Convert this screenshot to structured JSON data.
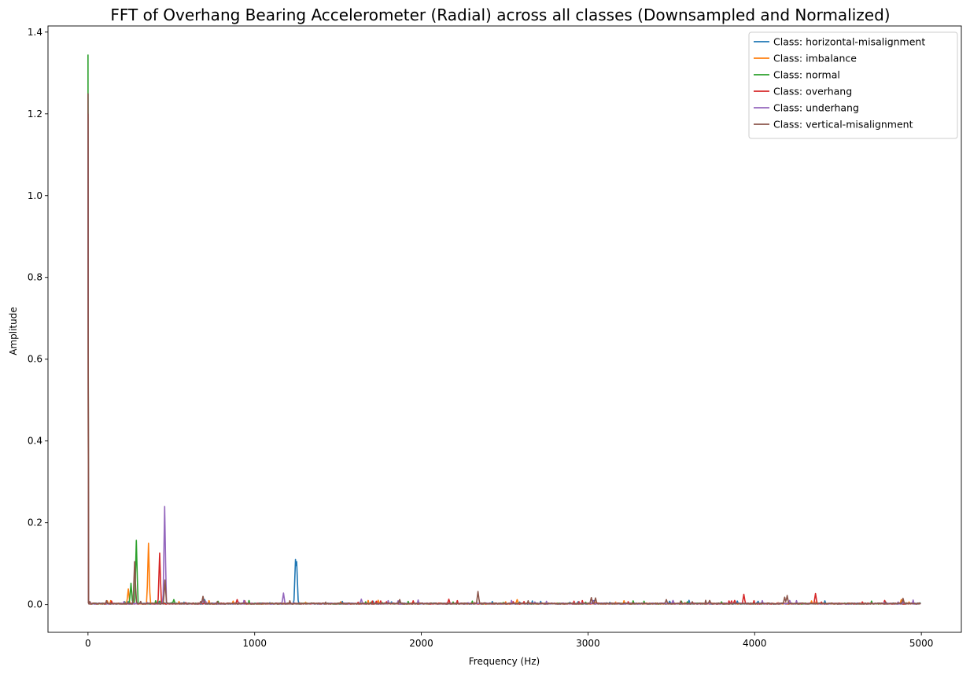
{
  "chart_data": {
    "type": "line",
    "title": "FFT of Overhang Bearing Accelerometer (Radial) across all classes (Downsampled and Normalized)",
    "xlabel": "Frequency (Hz)",
    "ylabel": "Amplitude",
    "xlim": [
      -240,
      5240
    ],
    "ylim": [
      -0.068,
      1.415
    ],
    "xticks": [
      0,
      1000,
      2000,
      3000,
      4000,
      5000
    ],
    "xtick_labels": [
      "0",
      "1000",
      "2000",
      "3000",
      "4000",
      "5000"
    ],
    "yticks": [
      0.0,
      0.2,
      0.4,
      0.6,
      0.8,
      1.0,
      1.2,
      1.4
    ],
    "ytick_labels": [
      "0.0",
      "0.2",
      "0.4",
      "0.6",
      "0.8",
      "1.0",
      "1.2",
      "1.4"
    ],
    "grid": false,
    "legend_position": "top-right",
    "x_max": 5000,
    "baseline": 0.002,
    "series": [
      {
        "name": "Class: horizontal-misalignment",
        "color": "#1f77b4",
        "dc": 1.25,
        "peaks": [
          [
            1245,
            0.11
          ],
          [
            1252,
            0.105
          ],
          [
            700,
            0.012
          ],
          [
            1870,
            0.01
          ],
          [
            3490,
            0.008
          ],
          [
            2590,
            0.006
          ]
        ]
      },
      {
        "name": "Class: imbalance",
        "color": "#ff7f0e",
        "dc": 1.2,
        "peaks": [
          [
            242,
            0.038
          ],
          [
            363,
            0.15
          ],
          [
            2575,
            0.012
          ],
          [
            4880,
            0.012
          ],
          [
            700,
            0.008
          ],
          [
            3050,
            0.006
          ]
        ]
      },
      {
        "name": "Class: normal",
        "color": "#2ca02c",
        "dc": 1.345,
        "peaks": [
          [
            258,
            0.052
          ],
          [
            290,
            0.157
          ],
          [
            515,
            0.012
          ],
          [
            780,
            0.008
          ],
          [
            1700,
            0.006
          ]
        ]
      },
      {
        "name": "Class: overhang",
        "color": "#d62728",
        "dc": 1.2,
        "peaks": [
          [
            430,
            0.126
          ],
          [
            895,
            0.012
          ],
          [
            2165,
            0.013
          ],
          [
            3935,
            0.025
          ],
          [
            4365,
            0.027
          ],
          [
            3880,
            0.01
          ],
          [
            4780,
            0.01
          ],
          [
            1730,
            0.008
          ]
        ]
      },
      {
        "name": "Class: underhang",
        "color": "#9467bd",
        "dc": 1.2,
        "peaks": [
          [
            460,
            0.24
          ],
          [
            1173,
            0.028
          ],
          [
            1640,
            0.013
          ],
          [
            3030,
            0.01
          ],
          [
            3510,
            0.01
          ],
          [
            4210,
            0.01
          ],
          [
            690,
            0.012
          ]
        ]
      },
      {
        "name": "Class: vertical-misalignment",
        "color": "#8c564b",
        "dc": 1.25,
        "peaks": [
          [
            280,
            0.105
          ],
          [
            462,
            0.06
          ],
          [
            2340,
            0.032
          ],
          [
            3020,
            0.017
          ],
          [
            3045,
            0.016
          ],
          [
            4195,
            0.022
          ],
          [
            4180,
            0.018
          ],
          [
            4890,
            0.015
          ],
          [
            690,
            0.02
          ],
          [
            1870,
            0.012
          ],
          [
            3470,
            0.012
          ],
          [
            3730,
            0.01
          ]
        ]
      }
    ]
  }
}
